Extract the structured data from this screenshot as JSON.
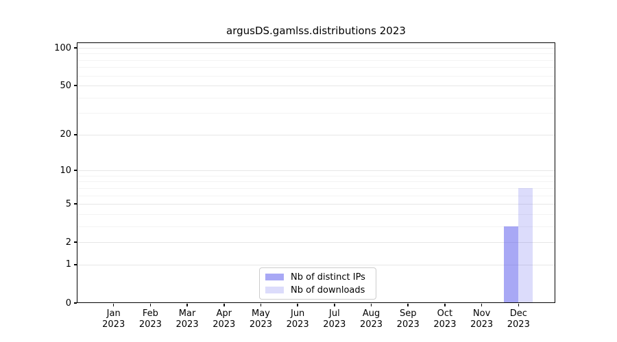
{
  "chart_data": {
    "type": "bar",
    "title": "argusDS.gamlss.distributions 2023",
    "categories": [
      "Jan",
      "Feb",
      "Mar",
      "Apr",
      "May",
      "Jun",
      "Jul",
      "Aug",
      "Sep",
      "Oct",
      "Nov",
      "Dec"
    ],
    "category_year_line": "2023",
    "series": [
      {
        "name": "Nb of distinct IPs",
        "color": "rgba(81,81,235,0.5)",
        "color_on_white": "#A8A8F5",
        "values": [
          0,
          0,
          0,
          0,
          0,
          0,
          0,
          0,
          0,
          0,
          0,
          3
        ]
      },
      {
        "name": "Nb of downloads",
        "color": "rgba(81,81,235,0.2)",
        "color_on_white": "#DDDDF9",
        "values": [
          0,
          0,
          0,
          0,
          0,
          0,
          0,
          0,
          0,
          0,
          0,
          7
        ]
      }
    ],
    "xlabel": "",
    "ylabel": "",
    "yscale": "log1p",
    "yticks": [
      0,
      1,
      2,
      5,
      10,
      20,
      50,
      100
    ],
    "minor_yticks": [
      3,
      4,
      6,
      7,
      8,
      9,
      30,
      40,
      60,
      70,
      80,
      90
    ],
    "ylim": [
      0,
      111
    ],
    "grid": true,
    "legend_position": "lower center",
    "colors": {
      "grid_major": "#E6E6E6",
      "grid_minor": "#F3F3F3",
      "spine": "#000000",
      "background": "#FFFFFF",
      "text": "#000000"
    }
  }
}
